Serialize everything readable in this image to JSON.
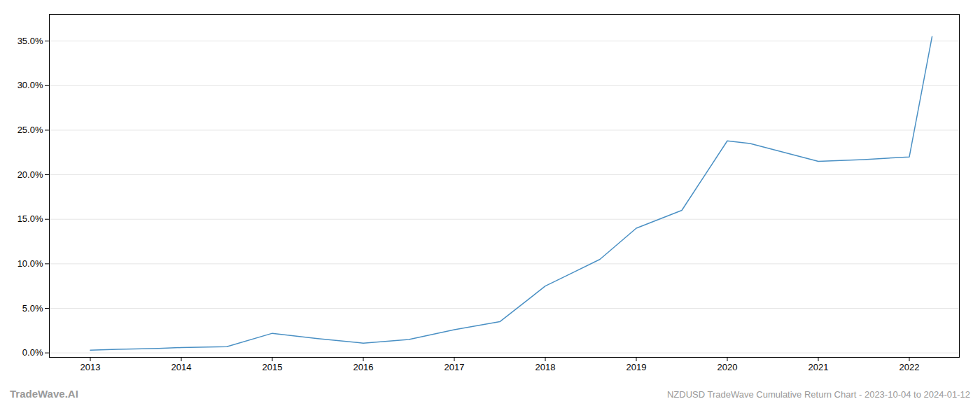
{
  "chart_data": {
    "type": "line",
    "title": "NZDUSD TradeWave Cumulative Return Chart - 2023-10-04 to 2024-01-12",
    "annotations": [
      "TradeWave.AI"
    ],
    "x": [
      2013.0,
      2013.3,
      2013.75,
      2014.0,
      2014.5,
      2015.0,
      2015.5,
      2016.0,
      2016.5,
      2017.0,
      2017.5,
      2018.0,
      2018.3,
      2018.6,
      2019.0,
      2019.5,
      2020.0,
      2020.25,
      2021.0,
      2021.5,
      2022.0,
      2022.25
    ],
    "values": [
      0.003,
      0.004,
      0.005,
      0.006,
      0.007,
      0.022,
      0.016,
      0.011,
      0.015,
      0.026,
      0.035,
      0.075,
      0.09,
      0.105,
      0.14,
      0.16,
      0.238,
      0.235,
      0.215,
      0.217,
      0.22,
      0.355
    ],
    "color": "#4a90c4",
    "xlim": [
      2012.55,
      2022.55
    ],
    "xticks": [
      2013,
      2014,
      2015,
      2016,
      2017,
      2018,
      2019,
      2020,
      2021,
      2022
    ],
    "ylim": [
      -0.005,
      0.38
    ],
    "yticks": [
      {
        "value": 0.0,
        "label": "0.0%"
      },
      {
        "value": 0.05,
        "label": "5.0%"
      },
      {
        "value": 0.1,
        "label": "10.0%"
      },
      {
        "value": 0.15,
        "label": "15.0%"
      },
      {
        "value": 0.2,
        "label": "20.0%"
      },
      {
        "value": 0.25,
        "label": "25.0%"
      },
      {
        "value": 0.3,
        "label": "30.0%"
      },
      {
        "value": 0.35,
        "label": "35.0%"
      }
    ],
    "grid": "y"
  }
}
